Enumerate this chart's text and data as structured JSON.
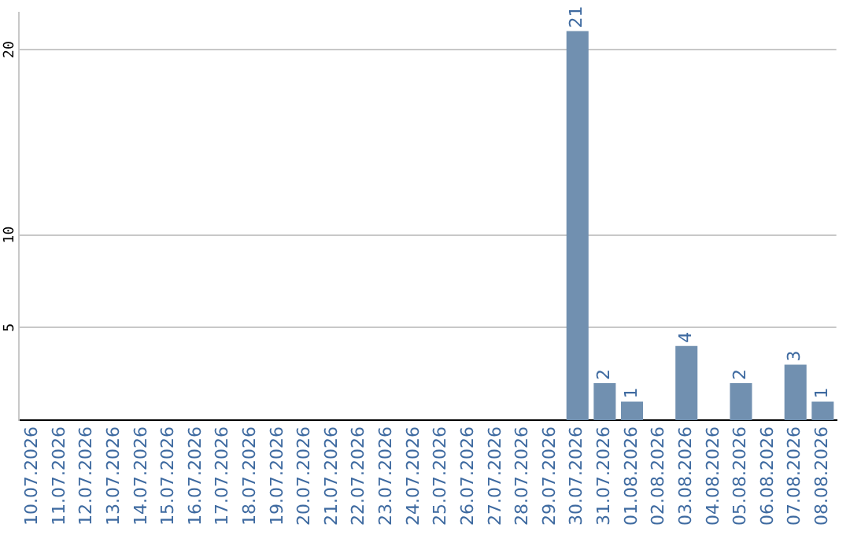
{
  "chart_data": {
    "type": "bar",
    "categories": [
      "10.07.2026",
      "11.07.2026",
      "12.07.2026",
      "13.07.2026",
      "14.07.2026",
      "15.07.2026",
      "16.07.2026",
      "17.07.2026",
      "18.07.2026",
      "19.07.2026",
      "20.07.2026",
      "21.07.2026",
      "22.07.2026",
      "23.07.2026",
      "24.07.2026",
      "25.07.2026",
      "26.07.2026",
      "27.07.2026",
      "28.07.2026",
      "29.07.2026",
      "30.07.2026",
      "31.07.2026",
      "01.08.2026",
      "02.08.2026",
      "03.08.2026",
      "04.08.2026",
      "05.08.2026",
      "06.08.2026",
      "07.08.2026",
      "08.08.2026"
    ],
    "values": [
      0,
      0,
      0,
      0,
      0,
      0,
      0,
      0,
      0,
      0,
      0,
      0,
      0,
      0,
      0,
      0,
      0,
      0,
      0,
      0,
      21,
      2,
      1,
      0,
      4,
      0,
      2,
      0,
      3,
      1
    ],
    "value_labels": [
      null,
      null,
      null,
      null,
      null,
      null,
      null,
      null,
      null,
      null,
      null,
      null,
      null,
      null,
      null,
      null,
      null,
      null,
      null,
      null,
      "21",
      "2",
      "1",
      null,
      "4",
      null,
      "2",
      null,
      "3",
      "1"
    ],
    "color": "#7190b0",
    "ylim": [
      0,
      22
    ],
    "yticks": [
      5,
      10,
      20
    ],
    "grid": "y",
    "legend": false
  }
}
